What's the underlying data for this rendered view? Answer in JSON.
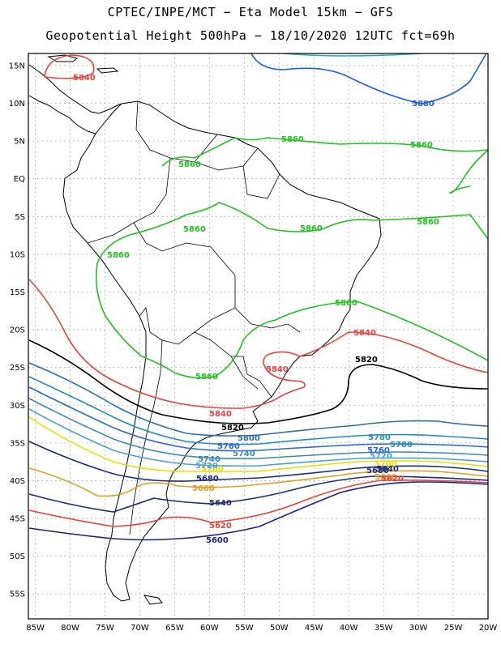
{
  "title_line1": "CPTEC/INPE/MCT −  Eta Model 15km − GFS",
  "title_line2": "Geopotential Height 500hPa − 18/10/2020 12UTC fct=69h",
  "lat_labels": [
    "15N",
    "10N",
    "5N",
    "EQ",
    "5S",
    "10S",
    "15S",
    "20S",
    "25S",
    "30S",
    "35S",
    "40S",
    "45S",
    "50S",
    "55S"
  ],
  "lon_labels": [
    "85W",
    "80W",
    "75W",
    "70W",
    "65W",
    "60W",
    "55W",
    "50W",
    "45W",
    "40W",
    "35W",
    "30W",
    "25W",
    "20W"
  ],
  "extent": {
    "lon_min": -86,
    "lon_max": -20,
    "lat_min": -58.3,
    "lat_max": 16.6
  },
  "contour_colors": {
    "5600": "#1a237e",
    "5620": "#e8423c",
    "5640": "#1e2f78",
    "5660": "#e0a020",
    "5680": "#1e2d7a",
    "5700": "#e8e000",
    "5720": "#4a9fd8",
    "5740": "#3f8ab0",
    "5760": "#2a66d8",
    "5780": "#1f8fc0",
    "5800": "#2e6fa8",
    "5820": "#000000",
    "5840": "#e8423c",
    "5860": "#22c022",
    "5880": "#1f5fe0",
    "5900": "#20b0b0"
  },
  "contour_labels": [
    {
      "text": "5840",
      "key": "5840"
    },
    {
      "text": "5880",
      "key": "5880"
    },
    {
      "text": "5860",
      "key": "5860"
    },
    {
      "text": "5860",
      "key": "5860"
    },
    {
      "text": "5860",
      "key": "5860"
    },
    {
      "text": "5860",
      "key": "5860"
    },
    {
      "text": "5860",
      "key": "5860"
    },
    {
      "text": "5860",
      "key": "5860"
    },
    {
      "text": "5860",
      "key": "5860"
    },
    {
      "text": "5860",
      "key": "5860"
    },
    {
      "text": "5860",
      "key": "5860"
    },
    {
      "text": "5840",
      "key": "5840"
    },
    {
      "text": "5840",
      "key": "5840"
    },
    {
      "text": "5820",
      "key": "5820"
    },
    {
      "text": "5840",
      "key": "5840"
    },
    {
      "text": "5820",
      "key": "5820"
    },
    {
      "text": "5800",
      "key": "5800"
    },
    {
      "text": "5780",
      "key": "5780"
    },
    {
      "text": "5760",
      "key": "5760"
    },
    {
      "text": "5740",
      "key": "5740"
    },
    {
      "text": "5720",
      "key": "5720"
    },
    {
      "text": "5700",
      "key": "5700"
    },
    {
      "text": "5680",
      "key": "5680"
    },
    {
      "text": "5660",
      "key": "5660"
    },
    {
      "text": "5640",
      "key": "5640"
    },
    {
      "text": "5620",
      "key": "5620"
    },
    {
      "text": "5600",
      "key": "5600"
    },
    {
      "text": "5780",
      "key": "5780"
    },
    {
      "text": "5760",
      "key": "5760"
    },
    {
      "text": "5740",
      "key": "5740"
    },
    {
      "text": "5720",
      "key": "5720"
    },
    {
      "text": "5700",
      "key": "5700"
    },
    {
      "text": "5680",
      "key": "5680"
    },
    {
      "text": "5660",
      "key": "5660"
    },
    {
      "text": "5640",
      "key": "5640"
    },
    {
      "text": "5620",
      "key": "5620"
    }
  ]
}
